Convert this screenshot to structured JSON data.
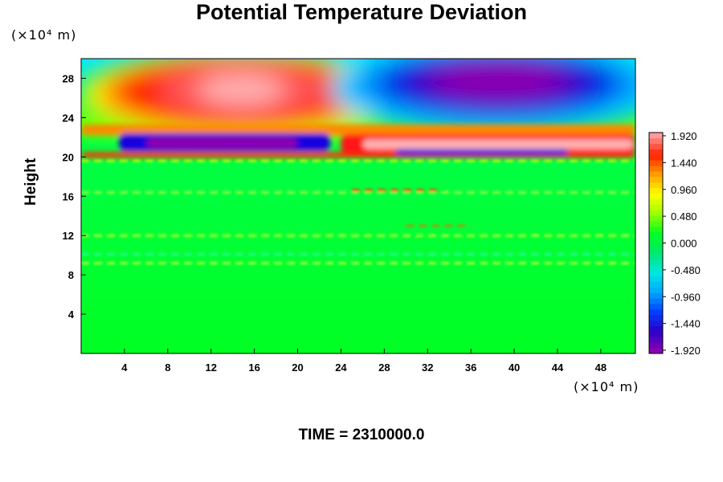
{
  "chart_data": {
    "type": "heatmap",
    "title": "Potential Temperature Deviation",
    "ylabel": "Height",
    "x_unit": "(×10⁴ m)",
    "y_unit": "(×10⁴ m)",
    "footer": "TIME = 2310000.0",
    "xlim": [
      0,
      51.2
    ],
    "ylim": [
      0,
      30
    ],
    "x_ticks": [
      "4",
      "8",
      "12",
      "16",
      "20",
      "24",
      "28",
      "32",
      "36",
      "40",
      "44",
      "48"
    ],
    "y_ticks": [
      "4",
      "8",
      "12",
      "16",
      "20",
      "24",
      "28"
    ],
    "colorbar_ticks": [
      "1.920",
      "1.440",
      "0.960",
      "0.480",
      "0.000",
      "-0.480",
      "-0.960",
      "-1.440",
      "-1.920"
    ],
    "color_range": [
      -1.92,
      1.92
    ],
    "colorscale": [
      "#8a00b0",
      "#2a00c8",
      "#0040ff",
      "#00a8ff",
      "#00e8e0",
      "#00e870",
      "#00ff22",
      "#99ff00",
      "#ffff00",
      "#ffa000",
      "#ff2000",
      "#ff9a9a"
    ],
    "features": [
      {
        "name": "warm anomaly (upper left)",
        "x_center": 14.5,
        "y_center": 26.8,
        "peak": 1.92
      },
      {
        "name": "cold anomaly (upper right)",
        "x_center": 38.5,
        "y_center": 27.7,
        "peak": -1.92
      },
      {
        "name": "cold band",
        "x_range": [
          5,
          20
        ],
        "y_center": 21.5,
        "peak": -1.92
      },
      {
        "name": "warm band",
        "x_range": [
          26,
          51
        ],
        "y_center": 21.2,
        "peak": 1.92
      }
    ]
  }
}
